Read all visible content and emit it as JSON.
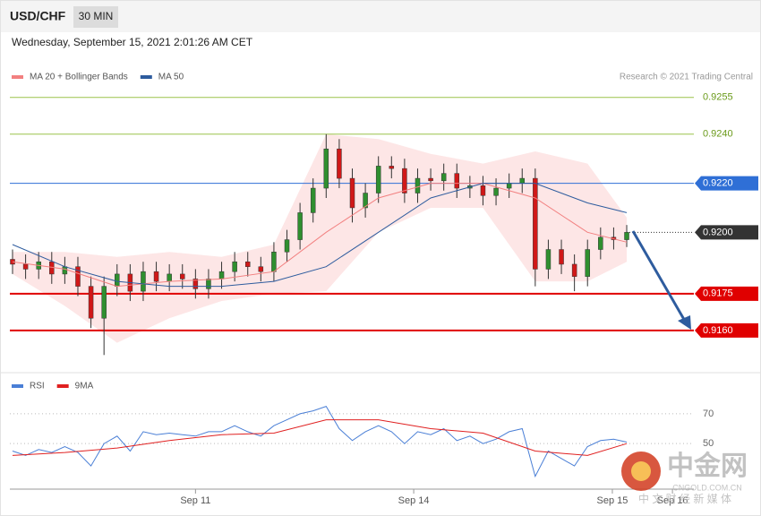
{
  "header": {
    "symbol": "USD/CHF",
    "interval": "30 MIN",
    "timestamp": "Wednesday, September 15, 2021 2:01:26 AM CET"
  },
  "chart_data": [
    {
      "type": "candlestick",
      "credit": "Research © 2021 Trading Central",
      "xlim": [
        0,
        52
      ],
      "ylim": [
        0.9145,
        0.926
      ],
      "xticks": [
        {
          "value": 14,
          "label": "Sep 11"
        },
        {
          "value": 30.7,
          "label": "Sep 14"
        },
        {
          "value": 45.9,
          "label": "Sep 15"
        },
        {
          "value": 50.5,
          "label": "Sep 16"
        }
      ],
      "up_color": "#2f8f2f",
      "down_color": "#d01818",
      "open": [
        0.9189,
        0.9187,
        0.9185,
        0.9188,
        0.9183,
        0.9186,
        0.9178,
        0.9165,
        0.9178,
        0.9183,
        0.9176,
        0.9184,
        0.918,
        0.9183,
        0.9181,
        0.9177,
        0.9181,
        0.9184,
        0.9188,
        0.9186,
        0.9184,
        0.9192,
        0.9197,
        0.9208,
        0.9218,
        0.9234,
        0.9222,
        0.921,
        0.9216,
        0.9227,
        0.9226,
        0.9216,
        0.9222,
        0.9221,
        0.9224,
        0.9218,
        0.9219,
        0.9215,
        0.9218,
        0.922,
        0.9222,
        0.9185,
        0.9193,
        0.9187,
        0.9182,
        0.9193,
        0.9198,
        0.9197
      ],
      "high": [
        0.9193,
        0.9191,
        0.9192,
        0.9192,
        0.919,
        0.919,
        0.9182,
        0.9182,
        0.9187,
        0.9187,
        0.9188,
        0.9188,
        0.9187,
        0.9187,
        0.9185,
        0.9185,
        0.9188,
        0.9192,
        0.9192,
        0.919,
        0.9196,
        0.9201,
        0.9212,
        0.9222,
        0.924,
        0.9238,
        0.9226,
        0.922,
        0.9231,
        0.9231,
        0.923,
        0.9226,
        0.9226,
        0.9228,
        0.9228,
        0.9223,
        0.9223,
        0.9222,
        0.9224,
        0.9226,
        0.9226,
        0.9197,
        0.9197,
        0.9191,
        0.9197,
        0.9202,
        0.9202,
        0.9203
      ],
      "low": [
        0.9183,
        0.9181,
        0.9181,
        0.9179,
        0.9179,
        0.9174,
        0.9161,
        0.915,
        0.9174,
        0.9172,
        0.9172,
        0.9176,
        0.9176,
        0.9177,
        0.9173,
        0.9173,
        0.9177,
        0.918,
        0.9182,
        0.918,
        0.918,
        0.9188,
        0.9193,
        0.9204,
        0.9214,
        0.9218,
        0.9204,
        0.9206,
        0.9212,
        0.9222,
        0.9212,
        0.9212,
        0.9217,
        0.9217,
        0.9214,
        0.9214,
        0.9211,
        0.9211,
        0.9214,
        0.9216,
        0.9178,
        0.9181,
        0.9183,
        0.9176,
        0.9178,
        0.9189,
        0.9193,
        0.9194
      ],
      "close": [
        0.9187,
        0.9185,
        0.9188,
        0.9183,
        0.9186,
        0.9178,
        0.9165,
        0.9178,
        0.9183,
        0.9176,
        0.9184,
        0.918,
        0.9183,
        0.9181,
        0.9177,
        0.9181,
        0.9184,
        0.9188,
        0.9186,
        0.9184,
        0.9192,
        0.9197,
        0.9208,
        0.9218,
        0.9234,
        0.9222,
        0.921,
        0.9216,
        0.9227,
        0.9226,
        0.9216,
        0.9222,
        0.9221,
        0.9224,
        0.9218,
        0.9219,
        0.9215,
        0.9218,
        0.922,
        0.9222,
        0.9185,
        0.9193,
        0.9187,
        0.9182,
        0.9193,
        0.9198,
        0.9197,
        0.92
      ],
      "series": [
        {
          "name": "MA 20 + Bollinger Bands",
          "color": "#f28080",
          "band_color": "#fde0e0",
          "x": [
            0,
            4,
            8,
            12,
            16,
            20,
            24,
            28,
            32,
            36,
            40,
            44,
            47
          ],
          "values": [
            0.9188,
            0.9185,
            0.9178,
            0.918,
            0.9181,
            0.9184,
            0.92,
            0.9214,
            0.922,
            0.922,
            0.9214,
            0.92,
            0.9196
          ],
          "upper": [
            0.9192,
            0.9192,
            0.919,
            0.9192,
            0.919,
            0.9195,
            0.924,
            0.9238,
            0.9232,
            0.9228,
            0.9233,
            0.9228,
            0.9206
          ],
          "lower": [
            0.9183,
            0.917,
            0.9155,
            0.9165,
            0.9172,
            0.9175,
            0.9176,
            0.92,
            0.921,
            0.921,
            0.918,
            0.918,
            0.9188
          ]
        },
        {
          "name": "MA 50",
          "color": "#2e5c9e",
          "x": [
            0,
            4,
            8,
            12,
            16,
            20,
            24,
            28,
            32,
            36,
            40,
            44,
            47
          ],
          "values": [
            0.9195,
            0.9186,
            0.918,
            0.9178,
            0.9178,
            0.918,
            0.9186,
            0.92,
            0.9214,
            0.922,
            0.922,
            0.9212,
            0.9208
          ]
        }
      ],
      "levels": [
        {
          "value": 0.9255,
          "color": "#9bc34a",
          "width": 1
        },
        {
          "value": 0.924,
          "label": "0.9240",
          "color": "#9bc34a",
          "width": 1
        },
        {
          "value": 0.922,
          "label": "0.9220",
          "color": "#2f6fd6",
          "width": 1
        },
        {
          "value": 0.92,
          "label": "0.9200",
          "color": "#333333",
          "width": 0
        },
        {
          "value": 0.9175,
          "color": "#e00000",
          "width": 2
        },
        {
          "value": 0.916,
          "label": "0.9160",
          "color": "#e00000",
          "width": 2
        }
      ]
    },
    {
      "type": "line",
      "xlim": [
        0,
        52
      ],
      "ylim": [
        20,
        85
      ],
      "yticks": [
        50,
        70
      ],
      "series": [
        {
          "name": "RSI",
          "color": "#4a7fd6",
          "x": [
            0,
            1,
            2,
            3,
            4,
            5,
            6,
            7,
            8,
            9,
            10,
            11,
            12,
            13,
            14,
            15,
            16,
            17,
            18,
            19,
            20,
            21,
            22,
            23,
            24,
            25,
            26,
            27,
            28,
            29,
            30,
            31,
            32,
            33,
            34,
            35,
            36,
            37,
            38,
            39,
            40,
            41,
            42,
            43,
            44,
            45,
            46,
            47
          ],
          "values": [
            45,
            42,
            46,
            44,
            48,
            44,
            35,
            50,
            55,
            45,
            58,
            56,
            57,
            56,
            55,
            58,
            58,
            62,
            58,
            55,
            62,
            66,
            70,
            72,
            75,
            60,
            52,
            58,
            62,
            58,
            50,
            58,
            56,
            60,
            52,
            55,
            50,
            53,
            58,
            60,
            28,
            45,
            40,
            35,
            48,
            52,
            53,
            51
          ]
        },
        {
          "name": "9MA",
          "color": "#e02020",
          "x": [
            0,
            4,
            8,
            12,
            16,
            20,
            24,
            28,
            32,
            36,
            40,
            44,
            47
          ],
          "values": [
            42,
            44,
            47,
            52,
            56,
            57,
            66,
            66,
            60,
            57,
            45,
            42,
            50
          ]
        }
      ]
    }
  ],
  "watermark": {
    "brand": "中金网",
    "site": "CNGOLD.COM.CN",
    "slogan": "中 文 财 经 新 媒 体"
  }
}
